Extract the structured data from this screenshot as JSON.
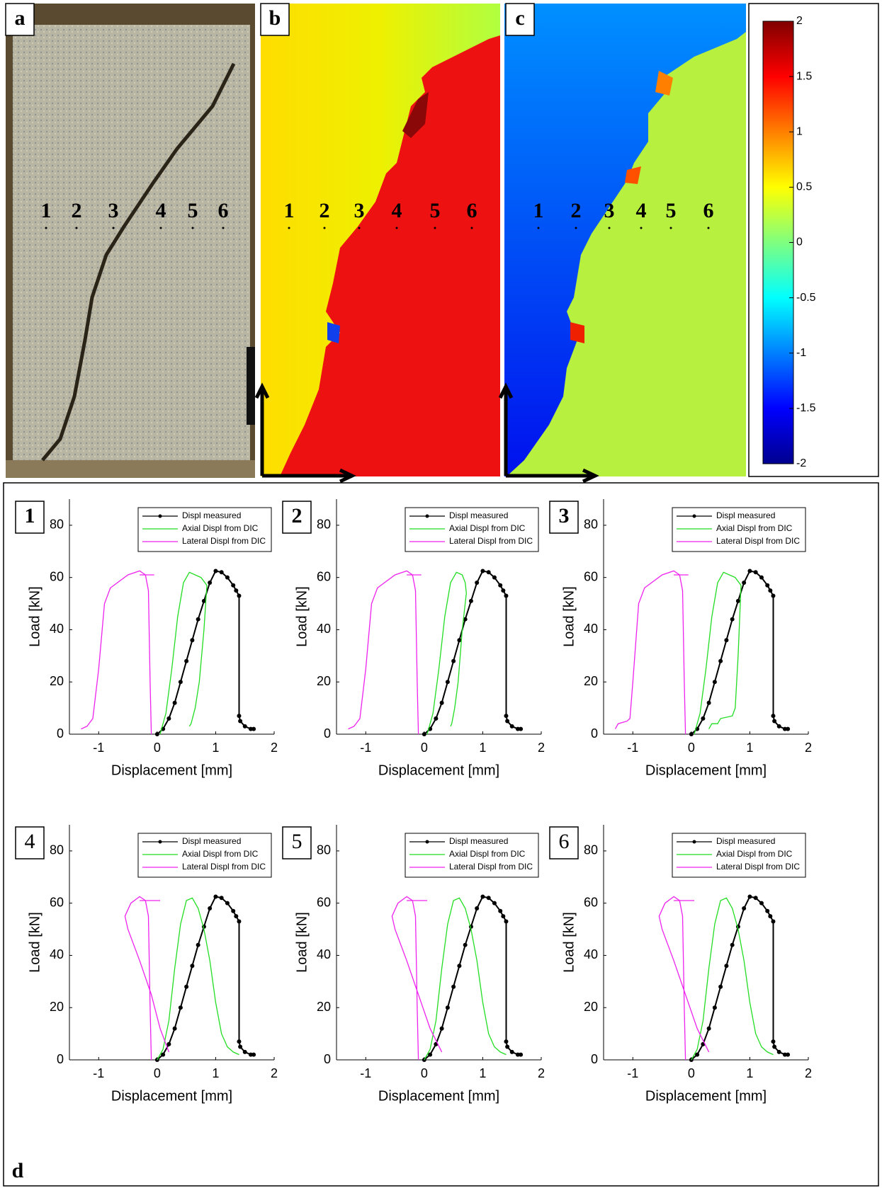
{
  "panels": [
    {
      "label": "a",
      "points": [
        "1",
        "2",
        "3",
        "4",
        "5",
        "6"
      ]
    },
    {
      "label": "b",
      "points": [
        "1",
        "2",
        "3",
        "4",
        "5",
        "6"
      ]
    },
    {
      "label": "c",
      "points": [
        "1",
        "2",
        "3",
        "4",
        "5",
        "6"
      ]
    },
    {
      "label": "d"
    }
  ],
  "colorbar": {
    "lim": [
      -2,
      2
    ],
    "ticks": [
      2,
      1.5,
      1,
      0.5,
      0,
      -0.5,
      -1,
      -1.5,
      -2
    ]
  },
  "chart_data": [
    {
      "type": "line",
      "label": "1",
      "xlabel": "Displacement [mm]",
      "ylabel": "Load [kN]",
      "xlim": [
        -1.5,
        2
      ],
      "ylim": [
        0,
        90
      ],
      "xticks": [
        -1,
        0,
        1,
        2
      ],
      "yticks": [
        0,
        20,
        40,
        60,
        80
      ],
      "series": [
        {
          "name": "Displ measured",
          "color": "#000000",
          "marker": true,
          "x": [
            0,
            0.1,
            0.2,
            0.3,
            0.4,
            0.5,
            0.6,
            0.7,
            0.8,
            0.9,
            1.0,
            1.1,
            1.2,
            1.3,
            1.35,
            1.4,
            1.4,
            1.42,
            1.5,
            1.6,
            1.65
          ],
          "values": [
            0,
            2,
            6,
            12,
            20,
            28,
            36,
            44,
            51,
            58,
            62.5,
            62,
            60,
            57,
            55,
            53,
            7,
            5,
            3,
            2,
            2
          ]
        },
        {
          "name": "Axial Displ from DIC",
          "color": "#22dd22",
          "x": [
            0.05,
            0.15,
            0.25,
            0.35,
            0.45,
            0.55,
            0.65,
            0.75,
            0.85,
            0.8,
            0.72,
            0.65,
            0.58,
            0.55
          ],
          "values": [
            0,
            8,
            25,
            45,
            58,
            62,
            61,
            60,
            57,
            40,
            20,
            10,
            4,
            3
          ]
        },
        {
          "name": "Lateral Displ from DIC",
          "color": "#ee22ee",
          "x": [
            -0.1,
            -0.12,
            -0.15,
            -0.2,
            -0.3,
            -0.5,
            -0.8,
            -0.9,
            -1.0,
            -1.1,
            -1.2,
            -1.3,
            null,
            -0.3,
            -0.05
          ],
          "values": [
            0,
            20,
            55,
            61,
            62.5,
            61,
            56,
            50,
            25,
            6,
            3,
            2,
            null,
            61,
            61
          ]
        }
      ]
    },
    {
      "type": "line",
      "label": "2",
      "xlabel": "Displacement [mm]",
      "ylabel": "Load [kN]",
      "xlim": [
        -1.5,
        2
      ],
      "ylim": [
        0,
        90
      ],
      "xticks": [
        -1,
        0,
        1,
        2
      ],
      "yticks": [
        0,
        20,
        40,
        60,
        80
      ],
      "series": [
        {
          "name": "Displ measured",
          "color": "#000000",
          "marker": true,
          "x": [
            0,
            0.1,
            0.2,
            0.3,
            0.4,
            0.5,
            0.6,
            0.7,
            0.8,
            0.9,
            1.0,
            1.1,
            1.2,
            1.3,
            1.35,
            1.4,
            1.4,
            1.42,
            1.5,
            1.6,
            1.65
          ],
          "values": [
            0,
            2,
            6,
            12,
            20,
            28,
            36,
            44,
            51,
            58,
            62.5,
            62,
            60,
            57,
            55,
            53,
            7,
            5,
            3,
            2,
            2
          ]
        },
        {
          "name": "Axial Displ from DIC",
          "color": "#22dd22",
          "x": [
            0.05,
            0.15,
            0.25,
            0.35,
            0.45,
            0.55,
            0.65,
            0.7,
            0.72,
            0.65,
            0.58,
            0.52,
            0.47,
            0.45
          ],
          "values": [
            0,
            8,
            25,
            45,
            58,
            62,
            61,
            58,
            54,
            40,
            20,
            10,
            4,
            3
          ]
        },
        {
          "name": "Lateral Displ from DIC",
          "color": "#ee22ee",
          "x": [
            -0.1,
            -0.12,
            -0.15,
            -0.2,
            -0.3,
            -0.5,
            -0.8,
            -0.9,
            -1.0,
            -1.1,
            -1.2,
            -1.3,
            null,
            -0.3,
            -0.05
          ],
          "values": [
            0,
            20,
            55,
            61,
            62.5,
            61,
            56,
            50,
            25,
            6,
            3,
            2,
            null,
            61,
            61
          ]
        }
      ]
    },
    {
      "type": "line",
      "label": "3",
      "xlabel": "Displacement [mm]",
      "ylabel": "Load [kN]",
      "xlim": [
        -1.5,
        2
      ],
      "ylim": [
        0,
        90
      ],
      "xticks": [
        -1,
        0,
        1,
        2
      ],
      "yticks": [
        0,
        20,
        40,
        60,
        80
      ],
      "series": [
        {
          "name": "Displ measured",
          "color": "#000000",
          "marker": true,
          "x": [
            0,
            0.1,
            0.2,
            0.3,
            0.4,
            0.5,
            0.6,
            0.7,
            0.8,
            0.9,
            1.0,
            1.1,
            1.2,
            1.3,
            1.35,
            1.4,
            1.4,
            1.42,
            1.5,
            1.6,
            1.65
          ],
          "values": [
            0,
            2,
            6,
            12,
            20,
            28,
            36,
            44,
            51,
            58,
            62.5,
            62,
            60,
            57,
            55,
            53,
            7,
            5,
            3,
            2,
            2
          ]
        },
        {
          "name": "Axial Displ from DIC",
          "color": "#22dd22",
          "x": [
            0.05,
            0.15,
            0.25,
            0.35,
            0.45,
            0.55,
            0.65,
            0.75,
            0.85,
            0.8,
            0.75,
            0.7,
            0.5,
            0.45,
            0.35,
            0.3
          ],
          "values": [
            0,
            8,
            25,
            45,
            58,
            62,
            61,
            60,
            57,
            30,
            10,
            7,
            6,
            4,
            4,
            2
          ]
        },
        {
          "name": "Lateral Displ from DIC",
          "color": "#ee22ee",
          "x": [
            -0.1,
            -0.12,
            -0.15,
            -0.2,
            -0.3,
            -0.5,
            -0.8,
            -0.9,
            -1.0,
            -1.05,
            -1.1,
            -1.25,
            -1.3,
            null,
            -0.3,
            -0.05
          ],
          "values": [
            0,
            20,
            55,
            61,
            62.5,
            61,
            56,
            50,
            20,
            6,
            5,
            4,
            2,
            null,
            61,
            61
          ]
        }
      ]
    },
    {
      "type": "line",
      "label": "4",
      "xlabel": "Displacement [mm]",
      "ylabel": "Load [kN]",
      "xlim": [
        -1.5,
        2
      ],
      "ylim": [
        0,
        90
      ],
      "xticks": [
        -1,
        0,
        1,
        2
      ],
      "yticks": [
        0,
        20,
        40,
        60,
        80
      ],
      "series": [
        {
          "name": "Displ measured",
          "color": "#000000",
          "marker": true,
          "x": [
            0,
            0.1,
            0.2,
            0.3,
            0.4,
            0.5,
            0.6,
            0.7,
            0.8,
            0.9,
            1.0,
            1.1,
            1.2,
            1.3,
            1.35,
            1.4,
            1.4,
            1.42,
            1.5,
            1.6,
            1.65
          ],
          "values": [
            0,
            2,
            6,
            12,
            20,
            28,
            36,
            44,
            51,
            58,
            62.5,
            62,
            60,
            57,
            55,
            53,
            7,
            5,
            3,
            2,
            2
          ]
        },
        {
          "name": "Axial Displ from DIC",
          "color": "#22dd22",
          "x": [
            0,
            0.1,
            0.2,
            0.3,
            0.4,
            0.5,
            0.6,
            0.7,
            0.8,
            0.9,
            1.0,
            1.1,
            1.2,
            1.3,
            1.4
          ],
          "values": [
            0,
            4,
            15,
            35,
            52,
            61,
            62,
            58,
            50,
            38,
            22,
            10,
            5,
            3,
            2
          ]
        },
        {
          "name": "Lateral Displ from DIC",
          "color": "#ee22ee",
          "x": [
            -0.1,
            -0.12,
            -0.15,
            -0.2,
            -0.3,
            -0.45,
            -0.55,
            -0.5,
            -0.3,
            -0.1,
            0.05,
            0.2,
            null,
            -0.3,
            0.05
          ],
          "values": [
            0,
            20,
            55,
            61,
            62.5,
            60,
            55,
            50,
            38,
            25,
            12,
            3,
            null,
            61,
            61
          ]
        }
      ]
    },
    {
      "type": "line",
      "label": "5",
      "xlabel": "Displacement [mm]",
      "ylabel": "Load [kN]",
      "xlim": [
        -1.5,
        2
      ],
      "ylim": [
        0,
        90
      ],
      "xticks": [
        -1,
        0,
        1,
        2
      ],
      "yticks": [
        0,
        20,
        40,
        60,
        80
      ],
      "series": [
        {
          "name": "Displ measured",
          "color": "#000000",
          "marker": true,
          "x": [
            0,
            0.1,
            0.2,
            0.3,
            0.4,
            0.5,
            0.6,
            0.7,
            0.8,
            0.9,
            1.0,
            1.1,
            1.2,
            1.3,
            1.35,
            1.4,
            1.4,
            1.42,
            1.5,
            1.6,
            1.65
          ],
          "values": [
            0,
            2,
            6,
            12,
            20,
            28,
            36,
            44,
            51,
            58,
            62.5,
            62,
            60,
            57,
            55,
            53,
            7,
            5,
            3,
            2,
            2
          ]
        },
        {
          "name": "Axial Displ from DIC",
          "color": "#22dd22",
          "x": [
            0,
            0.1,
            0.2,
            0.3,
            0.4,
            0.5,
            0.6,
            0.7,
            0.8,
            0.9,
            1.0,
            1.1,
            1.2,
            1.3,
            1.4
          ],
          "values": [
            0,
            4,
            15,
            35,
            52,
            61,
            62,
            58,
            50,
            38,
            22,
            10,
            5,
            3,
            2
          ]
        },
        {
          "name": "Lateral Displ from DIC",
          "color": "#ee22ee",
          "x": [
            -0.1,
            -0.12,
            -0.15,
            -0.2,
            -0.3,
            -0.45,
            -0.55,
            -0.5,
            -0.3,
            -0.1,
            0.1,
            0.3,
            null,
            -0.3,
            0.05
          ],
          "values": [
            0,
            20,
            55,
            61,
            62.5,
            60,
            55,
            50,
            38,
            25,
            12,
            3,
            null,
            61,
            61
          ]
        }
      ]
    },
    {
      "type": "line",
      "label": "6",
      "xlabel": "Displacement [mm]",
      "ylabel": "Load [kN]",
      "xlim": [
        -1.5,
        2
      ],
      "ylim": [
        0,
        90
      ],
      "xticks": [
        -1,
        0,
        1,
        2
      ],
      "yticks": [
        0,
        20,
        40,
        60,
        80
      ],
      "series": [
        {
          "name": "Displ measured",
          "color": "#000000",
          "marker": true,
          "x": [
            0,
            0.1,
            0.2,
            0.3,
            0.4,
            0.5,
            0.6,
            0.7,
            0.8,
            0.9,
            1.0,
            1.1,
            1.2,
            1.3,
            1.35,
            1.4,
            1.4,
            1.42,
            1.5,
            1.6,
            1.65
          ],
          "values": [
            0,
            2,
            6,
            12,
            20,
            28,
            36,
            44,
            51,
            58,
            62.5,
            62,
            60,
            57,
            55,
            53,
            7,
            5,
            3,
            2,
            2
          ]
        },
        {
          "name": "Axial Displ from DIC",
          "color": "#22dd22",
          "x": [
            0,
            0.1,
            0.2,
            0.3,
            0.4,
            0.5,
            0.6,
            0.7,
            0.8,
            0.9,
            1.0,
            1.1,
            1.2,
            1.3,
            1.4
          ],
          "values": [
            0,
            4,
            15,
            35,
            52,
            61,
            62,
            58,
            50,
            38,
            22,
            10,
            5,
            3,
            2
          ]
        },
        {
          "name": "Lateral Displ from DIC",
          "color": "#ee22ee",
          "x": [
            -0.1,
            -0.12,
            -0.15,
            -0.2,
            -0.3,
            -0.45,
            -0.55,
            -0.5,
            -0.3,
            -0.1,
            0.1,
            0.3,
            null,
            -0.3,
            0.05
          ],
          "values": [
            0,
            20,
            55,
            61,
            62.5,
            60,
            55,
            50,
            38,
            25,
            12,
            3,
            null,
            61,
            61
          ]
        }
      ]
    }
  ]
}
